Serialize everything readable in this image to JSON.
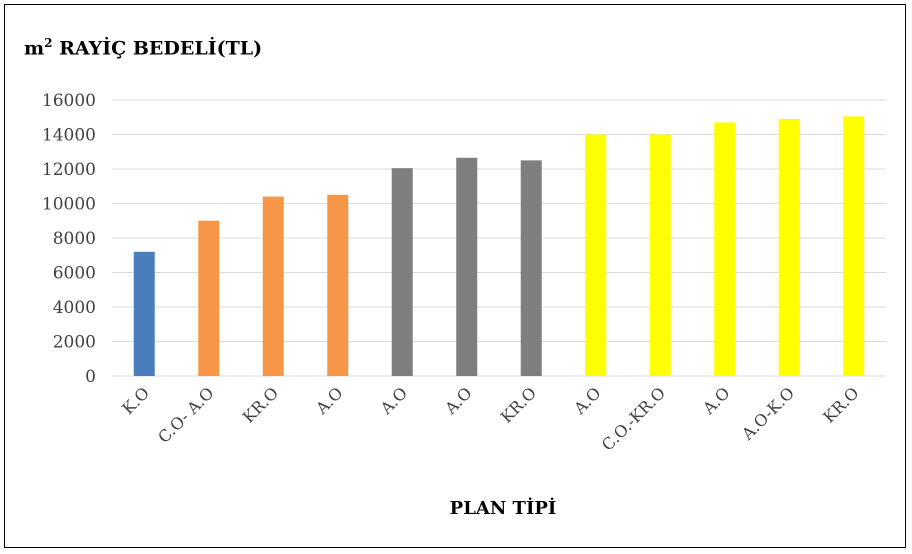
{
  "chart_data": {
    "type": "bar",
    "title_main": "m",
    "title_sup": "2",
    "title_rest": " RAYİÇ BEDELİ(TL)",
    "xlabel": "PLAN TİPİ",
    "ylabel": "",
    "ylim": [
      0,
      16000
    ],
    "yticks": [
      "0",
      "2000",
      "4000",
      "6000",
      "8000",
      "10000",
      "12000",
      "14000",
      "16000"
    ],
    "grid": "horizontal",
    "categories": [
      "K.O",
      "C.O- A.O",
      "KR.O",
      "A.O",
      "A.O",
      "A.O",
      "KR.O",
      "A.O",
      "C.O.-KR.O",
      "A.O",
      "A.O-K.O",
      "KR.O"
    ],
    "values": [
      7200,
      9000,
      10400,
      10500,
      12050,
      12650,
      12500,
      14000,
      14000,
      14700,
      14900,
      15050
    ],
    "colors": [
      "#4a7ebb",
      "#f79646",
      "#f79646",
      "#f79646",
      "#7f7f7f",
      "#7f7f7f",
      "#7f7f7f",
      "#ffff00",
      "#ffff00",
      "#ffff00",
      "#ffff00",
      "#ffff00"
    ]
  }
}
